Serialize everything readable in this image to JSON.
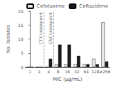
{
  "chart_data": {
    "type": "bar",
    "categories": [
      "1",
      "2",
      "4",
      "8",
      "16",
      "32",
      "64",
      "128",
      "≥256"
    ],
    "series": [
      {
        "name": "Cefotaxime",
        "color": "#e8e8e8",
        "values": [
          0,
          0,
          0,
          1,
          1,
          1,
          1,
          3,
          16
        ]
      },
      {
        "name": "Ceftazidime",
        "color": "#1a1a1a",
        "values": [
          0,
          0,
          3,
          8,
          8,
          4,
          1,
          1,
          2
        ]
      }
    ],
    "xlabel": "MIC (μg/mL)",
    "ylabel": "No. Isolates",
    "ylim": [
      0,
      20
    ],
    "yticks": [
      0,
      5,
      10,
      15,
      20
    ],
    "grid": false,
    "legend": "upper right",
    "annotations": [
      {
        "text": "CTX breakpoint",
        "x": 1.5,
        "line_style": "dashed"
      },
      {
        "text": "CAZ breakpoint",
        "x": 2.5,
        "line_style": "dashed"
      }
    ]
  }
}
